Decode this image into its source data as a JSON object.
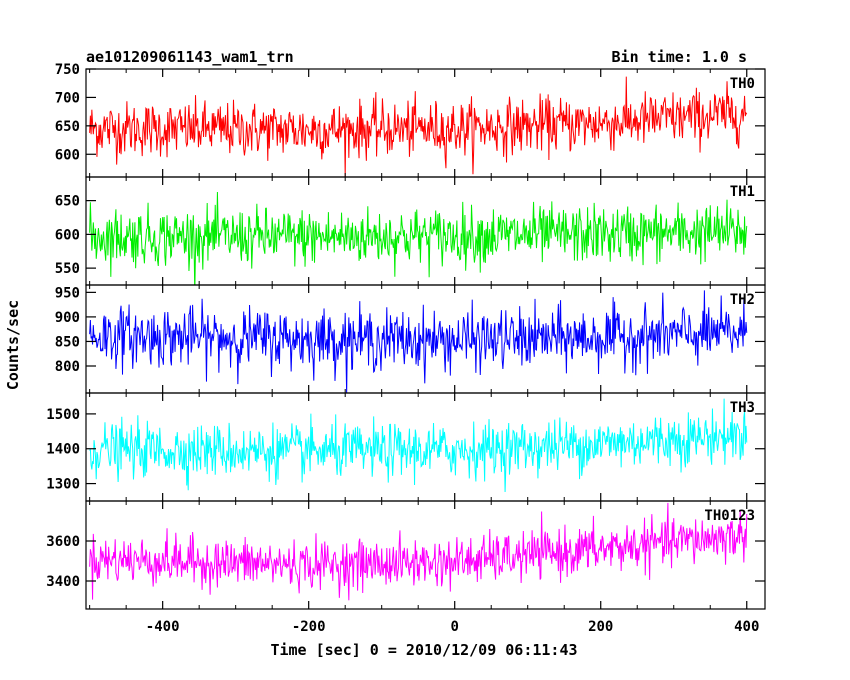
{
  "header": {
    "left_title": "ae101209061143_wam1_trn",
    "right_title": "Bin time: 1.0 s"
  },
  "chart_data": {
    "type": "line",
    "xlabel": "Time [sec] 0 = 2010/12/09 06:11:43",
    "ylabel": "Counts/sec",
    "xlim": [
      -505,
      425
    ],
    "x_ticks": [
      -400,
      -200,
      0,
      200,
      400
    ],
    "x_range": [
      -500,
      400
    ],
    "bin_time_s": 1.0,
    "grid": false,
    "panels": [
      {
        "name": "TH0",
        "color": "#ff0000",
        "ylim": [
          560,
          750
        ],
        "y_ticks": [
          600,
          650,
          700,
          750
        ],
        "trend": [
          [
            -500,
            645
          ],
          [
            -200,
            643
          ],
          [
            0,
            645
          ],
          [
            200,
            655
          ],
          [
            400,
            672
          ]
        ],
        "noise_sd": 24
      },
      {
        "name": "TH1",
        "color": "#00ee00",
        "ylim": [
          525,
          685
        ],
        "y_ticks": [
          550,
          600,
          650
        ],
        "trend": [
          [
            -500,
            597
          ],
          [
            -200,
            596
          ],
          [
            0,
            598
          ],
          [
            200,
            600
          ],
          [
            400,
            604
          ]
        ],
        "noise_sd": 21
      },
      {
        "name": "TH2",
        "color": "#0000ff",
        "ylim": [
          745,
          965
        ],
        "y_ticks": [
          800,
          850,
          900,
          950
        ],
        "trend": [
          [
            -500,
            862
          ],
          [
            -200,
            855
          ],
          [
            0,
            852
          ],
          [
            200,
            858
          ],
          [
            400,
            868
          ]
        ],
        "noise_sd": 30
      },
      {
        "name": "TH3",
        "color": "#00ffff",
        "ylim": [
          1250,
          1560
        ],
        "y_ticks": [
          1300,
          1400,
          1500
        ],
        "trend": [
          [
            -500,
            1398
          ],
          [
            -200,
            1392
          ],
          [
            0,
            1395
          ],
          [
            200,
            1415
          ],
          [
            400,
            1440
          ]
        ],
        "noise_sd": 38
      },
      {
        "name": "TH0123",
        "color": "#ff00ff",
        "ylim": [
          3260,
          3800
        ],
        "y_ticks": [
          3400,
          3600
        ],
        "trend": [
          [
            -500,
            3510
          ],
          [
            -200,
            3480
          ],
          [
            0,
            3495
          ],
          [
            200,
            3560
          ],
          [
            400,
            3630
          ]
        ],
        "noise_sd": 60
      }
    ]
  }
}
